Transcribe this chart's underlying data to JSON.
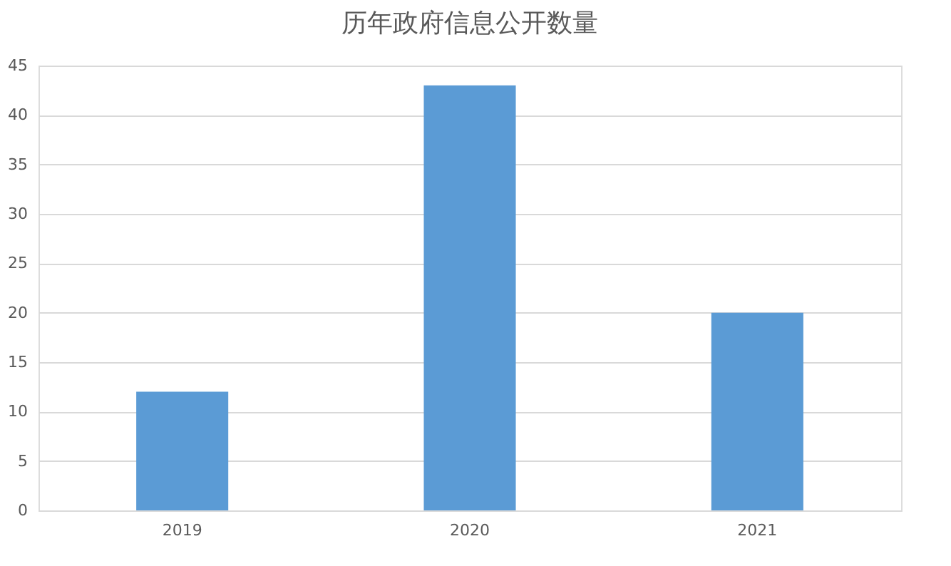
{
  "chart_data": {
    "type": "bar",
    "title": "历年政府信息公开数量",
    "categories": [
      "2019",
      "2020",
      "2021"
    ],
    "values": [
      12,
      43,
      20
    ],
    "color": "#5b9bd5",
    "ylim": [
      0,
      45
    ],
    "yticks": [
      0,
      5,
      10,
      15,
      20,
      25,
      30,
      35,
      40,
      45
    ],
    "grid": "y"
  }
}
